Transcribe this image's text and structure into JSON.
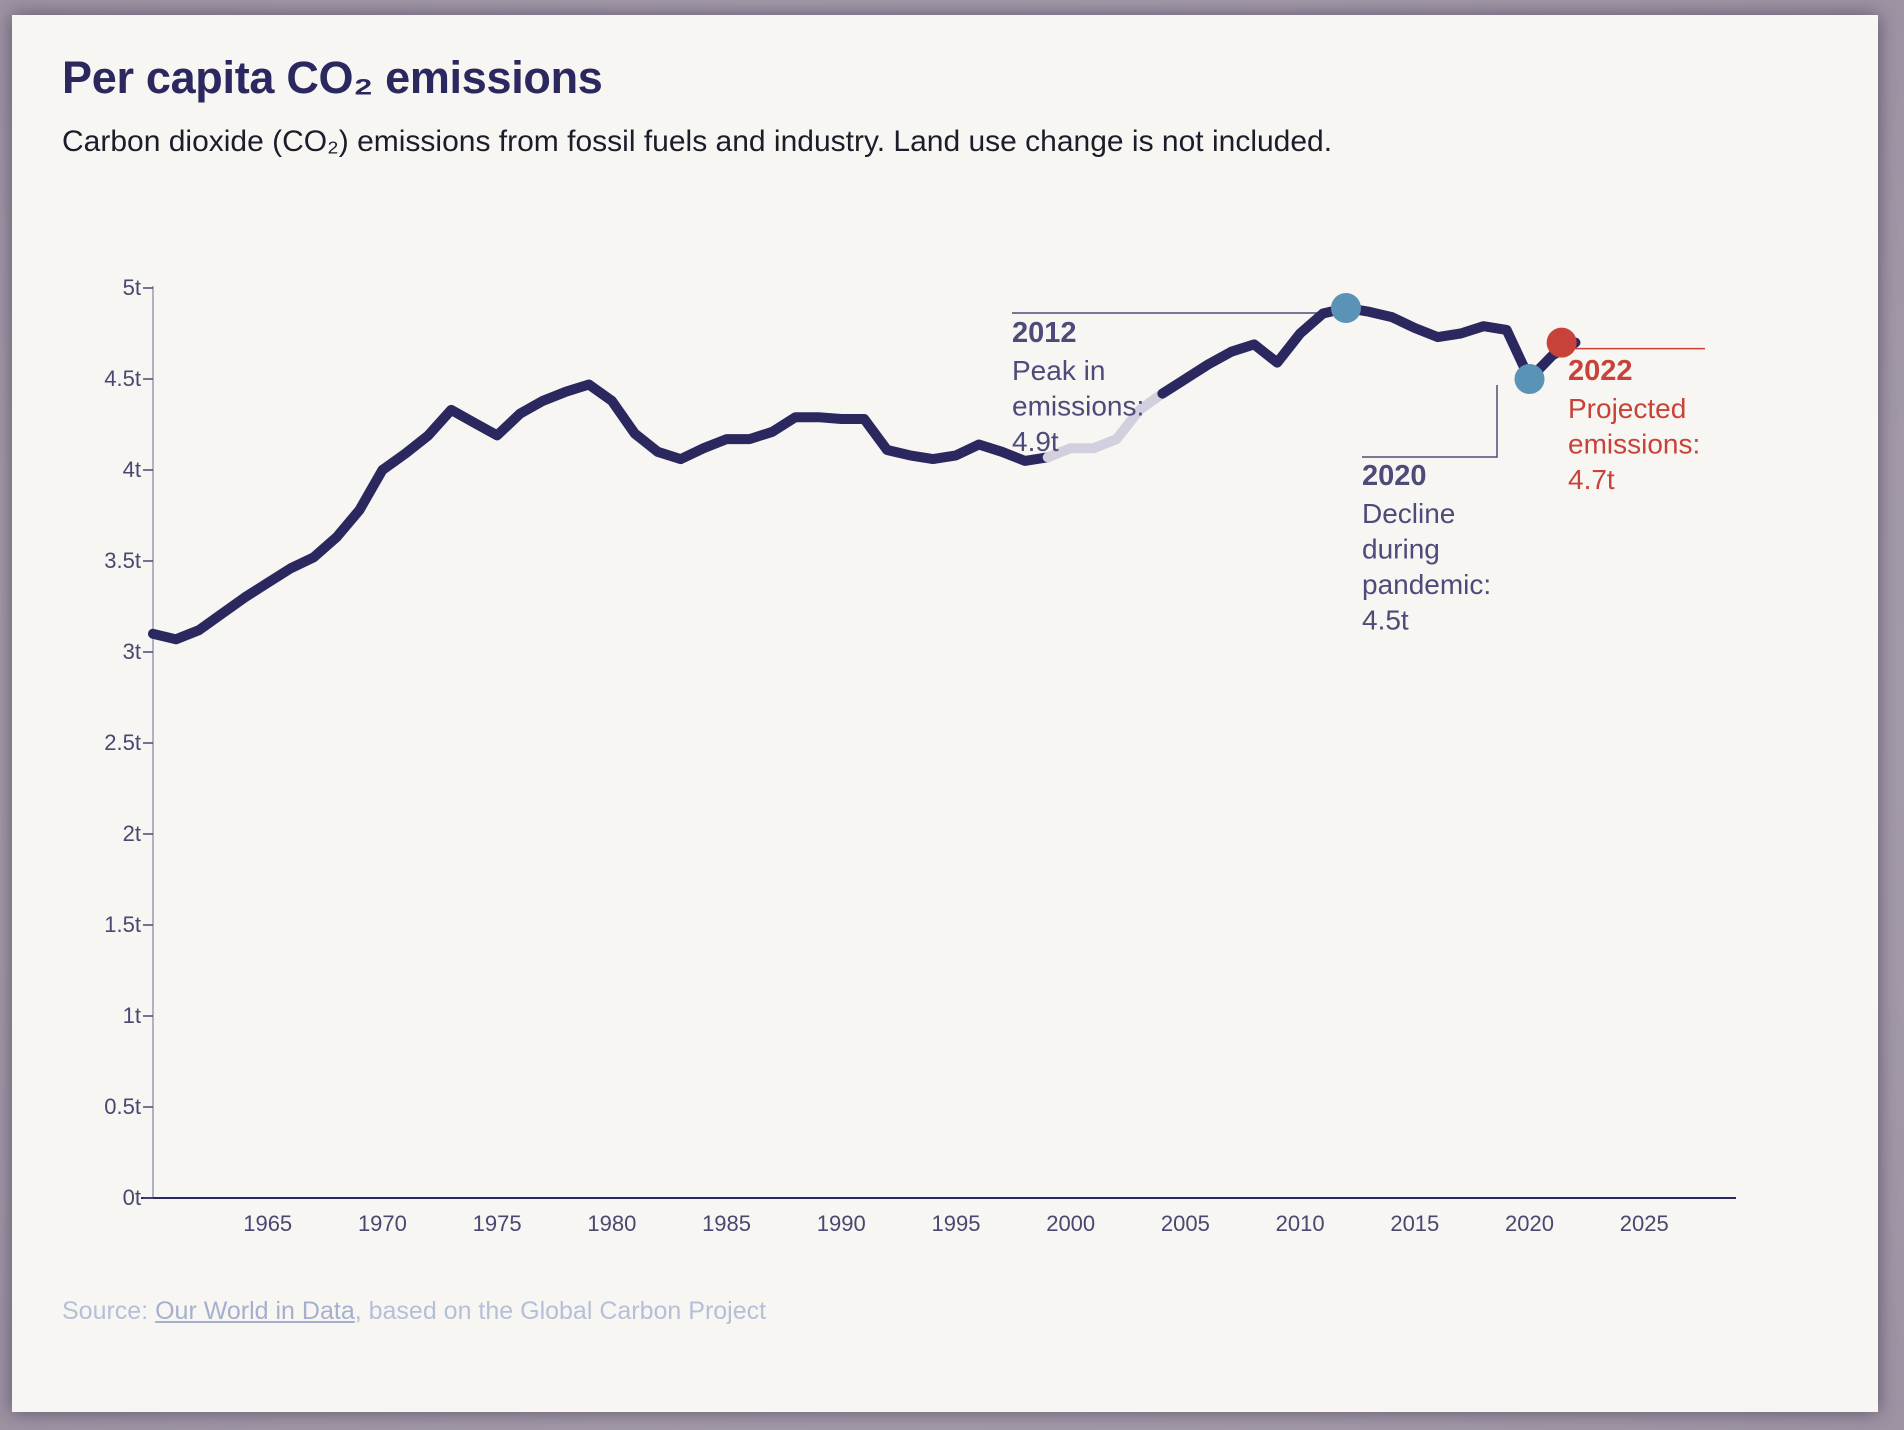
{
  "title": "Per capita CO₂ emissions",
  "subtitle": "Carbon dioxide (CO₂) emissions from fossil fuels and industry. Land use change is not included.",
  "source": {
    "prefix": "Source: ",
    "link_text": "Our World in Data",
    "suffix": ", based on the Global Carbon Project"
  },
  "colors": {
    "background": "#f7f6f2",
    "line": "#2b285f",
    "faded_line": "#d2d0de",
    "axis": "#4a4770",
    "highlight_dot": "#5a93b5",
    "projection": "#c9423a",
    "annotation_text": "#4e4a7a",
    "source_text": "#b6bfd8"
  },
  "chart_data": {
    "type": "line",
    "title": "Per capita CO₂ emissions",
    "xlabel": "",
    "ylabel": "",
    "xlim": [
      1960,
      2029
    ],
    "ylim": [
      0,
      5
    ],
    "grid": false,
    "x_ticks": [
      1965,
      1970,
      1975,
      1980,
      1985,
      1990,
      1995,
      2000,
      2005,
      2010,
      2015,
      2020,
      2025
    ],
    "x_tick_labels": [
      "1965",
      "1970",
      "1975",
      "1980",
      "1985",
      "1990",
      "1995",
      "2000",
      "2005",
      "2010",
      "2015",
      "2020",
      "2025"
    ],
    "y_ticks": [
      0,
      0.5,
      1,
      1.5,
      2,
      2.5,
      3,
      3.5,
      4,
      4.5,
      5
    ],
    "y_tick_labels": [
      "0t",
      "0.5t",
      "1t",
      "1.5t",
      "2t",
      "2.5t",
      "3t",
      "3.5t",
      "4t",
      "4.5t",
      "5t"
    ],
    "series": [
      {
        "name": "Per capita CO₂ emissions",
        "unit": "t",
        "x": [
          1960,
          1961,
          1962,
          1963,
          1964,
          1965,
          1966,
          1967,
          1968,
          1969,
          1970,
          1971,
          1972,
          1973,
          1974,
          1975,
          1976,
          1977,
          1978,
          1979,
          1980,
          1981,
          1982,
          1983,
          1984,
          1985,
          1986,
          1987,
          1988,
          1989,
          1990,
          1991,
          1992,
          1993,
          1994,
          1995,
          1996,
          1997,
          1998,
          1999,
          2000,
          2001,
          2002,
          2003,
          2004,
          2005,
          2006,
          2007,
          2008,
          2009,
          2010,
          2011,
          2012,
          2013,
          2014,
          2015,
          2016,
          2017,
          2018,
          2019,
          2020,
          2021,
          2022
        ],
        "values": [
          3.1,
          3.07,
          3.12,
          3.21,
          3.3,
          3.38,
          3.46,
          3.52,
          3.63,
          3.78,
          4.0,
          4.09,
          4.19,
          4.33,
          4.26,
          4.19,
          4.31,
          4.38,
          4.43,
          4.47,
          4.38,
          4.2,
          4.1,
          4.06,
          4.12,
          4.17,
          4.17,
          4.21,
          4.29,
          4.29,
          4.28,
          4.28,
          4.11,
          4.08,
          4.06,
          4.08,
          4.14,
          4.1,
          4.05,
          4.07,
          4.12,
          4.12,
          4.17,
          4.33,
          4.42,
          4.5,
          4.58,
          4.65,
          4.69,
          4.59,
          4.75,
          4.86,
          4.89,
          4.87,
          4.84,
          4.78,
          4.73,
          4.75,
          4.79,
          4.77,
          4.5,
          4.63,
          4.7
        ],
        "faded_range": [
          1999,
          2004
        ]
      }
    ],
    "annotations": [
      {
        "year": "2012",
        "x": 2012,
        "y": 4.89,
        "lines": [
          "Peak in",
          "emissions:",
          "4.9t"
        ],
        "style": "highlight"
      },
      {
        "year": "2020",
        "x": 2020,
        "y": 4.5,
        "lines": [
          "Decline",
          "during",
          "pandemic:",
          "4.5t"
        ],
        "style": "highlight"
      },
      {
        "year": "2022",
        "x": 2021.4,
        "y": 4.7,
        "lines": [
          "Projected",
          "emissions:",
          "4.7t"
        ],
        "style": "projection"
      }
    ]
  }
}
